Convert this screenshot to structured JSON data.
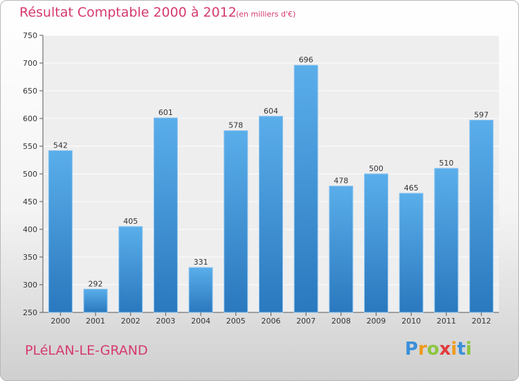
{
  "chart_data": {
    "type": "bar",
    "title": "Résultat Comptable 2000 à 2012",
    "subtitle": "(en milliers d'€)",
    "categories": [
      "2000",
      "2001",
      "2002",
      "2003",
      "2004",
      "2005",
      "2006",
      "2007",
      "2008",
      "2009",
      "2010",
      "2011",
      "2012"
    ],
    "values": [
      542,
      292,
      405,
      601,
      331,
      578,
      604,
      696,
      478,
      500,
      465,
      510,
      597
    ],
    "ylim": [
      250,
      750
    ],
    "yticks": [
      250,
      300,
      350,
      400,
      450,
      500,
      550,
      600,
      650,
      700,
      750
    ],
    "xlabel": "",
    "ylabel": "",
    "grid": true,
    "bar_color": "#4a9ee0"
  },
  "footer": {
    "commune": "PLéLAN-LE-GRAND",
    "logo_letters": [
      "P",
      "r",
      "o",
      "x",
      "i",
      "t",
      "i"
    ],
    "logo_colors": [
      "#3a8fd8",
      "#f09a1a",
      "#8cc63f",
      "#e23b3b",
      "#f09a1a",
      "#3a8fd8",
      "#8cc63f"
    ]
  }
}
